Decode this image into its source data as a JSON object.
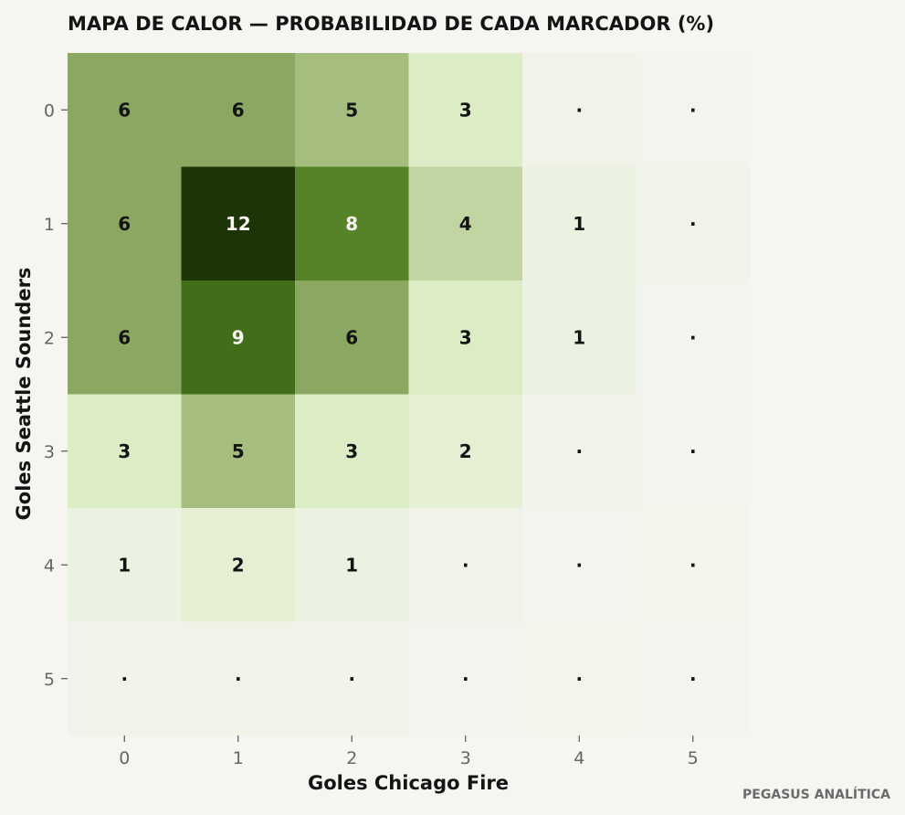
{
  "chart_data": {
    "type": "heatmap",
    "title": "MAPA DE CALOR — PROBABILIDAD DE CADA MARCADOR (%)",
    "xlabel": "Goles Chicago Fire",
    "ylabel": "Goles Seattle Sounders",
    "x_categories": [
      "0",
      "1",
      "2",
      "3",
      "4",
      "5"
    ],
    "y_categories": [
      "0",
      "1",
      "2",
      "3",
      "4",
      "5"
    ],
    "values": [
      [
        6,
        6,
        5,
        3,
        0.4,
        0.1
      ],
      [
        6,
        12,
        8,
        4,
        1,
        0.2
      ],
      [
        6,
        9,
        6,
        3,
        1,
        0.1
      ],
      [
        3,
        5,
        3,
        2,
        0.3,
        0.1
      ],
      [
        1,
        2,
        1,
        0.4,
        0.1,
        0.05
      ],
      [
        0.3,
        0.4,
        0.3,
        0.1,
        0.05,
        0.02
      ]
    ],
    "labels": [
      [
        "6",
        "6",
        "5",
        "3",
        "·",
        "·"
      ],
      [
        "6",
        "12",
        "8",
        "4",
        "1",
        "·"
      ],
      [
        "6",
        "9",
        "6",
        "3",
        "1",
        "·"
      ],
      [
        "3",
        "5",
        "3",
        "2",
        "·",
        "·"
      ],
      [
        "1",
        "2",
        "1",
        "·",
        "·",
        "·"
      ],
      [
        "·",
        "·",
        "·",
        "·",
        "·",
        "·"
      ]
    ],
    "colormap": {
      "low": "#f4f4ee",
      "stops": [
        [
          0,
          "#f4f4ee"
        ],
        [
          0.25,
          "#dcedc6"
        ],
        [
          0.45,
          "#9ab472"
        ],
        [
          0.7,
          "#4b7a1d"
        ],
        [
          1,
          "#1d3407"
        ]
      ]
    },
    "vmin": 0,
    "vmax": 12,
    "label_colors": {
      "dark_text": "#141414",
      "light_text": "#f6f5f1"
    },
    "grid": false,
    "legend": "none"
  },
  "footer": {
    "credit": "PEGASUS ANALÍTICA"
  }
}
